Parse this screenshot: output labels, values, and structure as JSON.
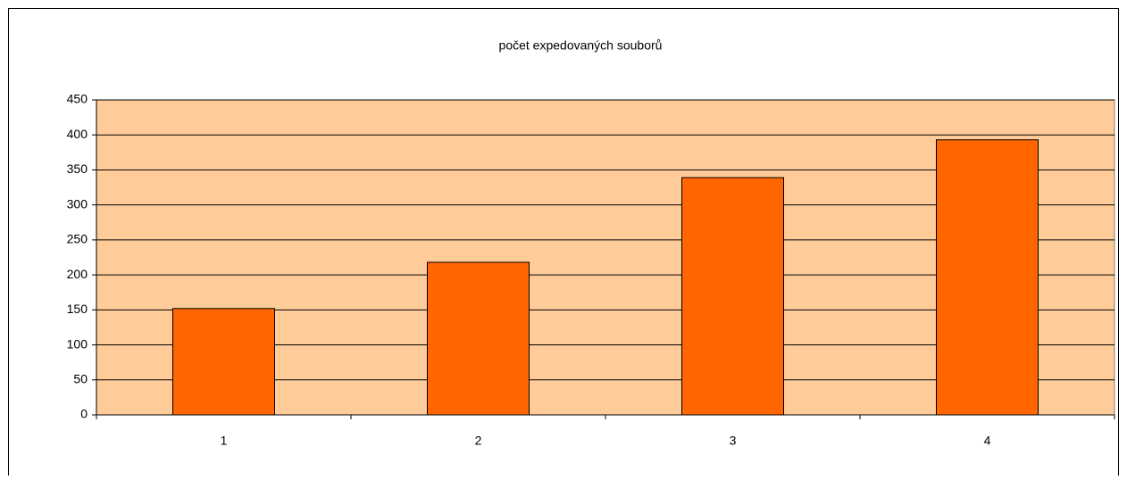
{
  "chart_data": {
    "type": "bar",
    "title": "počet expedovaných souborů",
    "categories": [
      "1",
      "2",
      "3",
      "4"
    ],
    "values": [
      152,
      218,
      339,
      393
    ],
    "color": "#ff6600",
    "plot_background": "#ffcc99",
    "ylim": [
      0,
      450
    ],
    "yticks": [
      0,
      50,
      100,
      150,
      200,
      250,
      300,
      350,
      400,
      450
    ],
    "grid": true
  }
}
